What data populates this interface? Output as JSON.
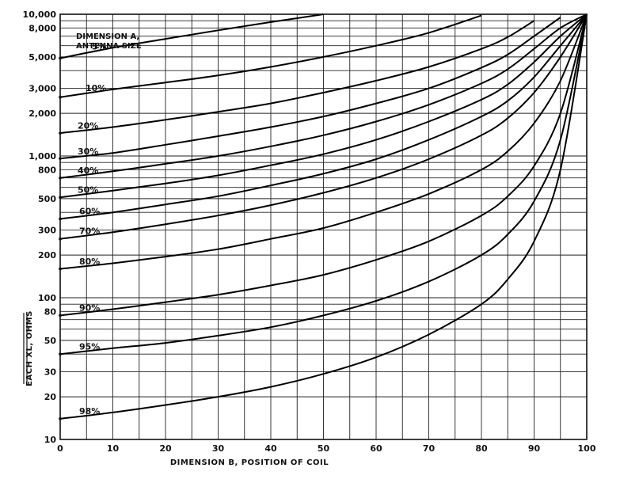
{
  "chart_data": {
    "type": "line",
    "title": "",
    "xlabel": "DIMENSION B, POSITION OF COIL",
    "ylabel": "EACH XL, OHMS",
    "legend_title": [
      "DIMENSION A,",
      "ANTENNA SIZE"
    ],
    "xlim": [
      0,
      100
    ],
    "ylim": [
      10,
      10000
    ],
    "yscale": "log",
    "grid": true,
    "x_ticks": [
      0,
      10,
      20,
      30,
      40,
      50,
      60,
      70,
      80,
      90,
      100
    ],
    "x_tick_labels": [
      "0",
      "10",
      "20",
      "30",
      "40",
      "50",
      "60",
      "70",
      "80",
      "90",
      "100"
    ],
    "y_ticks": [
      10,
      20,
      30,
      50,
      80,
      100,
      200,
      300,
      500,
      800,
      1000,
      2000,
      3000,
      5000,
      8000,
      10000
    ],
    "y_tick_labels": [
      "10",
      "20",
      "30",
      "50",
      "80",
      "100",
      "200",
      "300",
      "500",
      "800",
      "1,000",
      "2,000",
      "3,000",
      "5,000",
      "8,000",
      "10,000"
    ],
    "x": [
      0,
      10,
      20,
      30,
      40,
      50,
      60,
      70,
      80,
      85,
      90,
      95,
      100
    ],
    "series": [
      {
        "name": "5%",
        "values": [
          4900,
          5800,
          6700,
          7700,
          8800,
          10000,
          null,
          null,
          null,
          null,
          null,
          null,
          null
        ]
      },
      {
        "name": "10%",
        "values": [
          2600,
          2950,
          3300,
          3700,
          4250,
          5000,
          6000,
          7400,
          9800,
          null,
          null,
          null,
          null
        ]
      },
      {
        "name": "20%",
        "values": [
          1450,
          1600,
          1800,
          2050,
          2350,
          2800,
          3400,
          4250,
          5700,
          6900,
          9000,
          null,
          null
        ]
      },
      {
        "name": "30%",
        "values": [
          960,
          1050,
          1200,
          1380,
          1600,
          1900,
          2350,
          3000,
          4200,
          5200,
          7000,
          9500,
          null
        ]
      },
      {
        "name": "40%",
        "values": [
          700,
          780,
          880,
          1000,
          1170,
          1400,
          1750,
          2300,
          3250,
          4100,
          5700,
          8000,
          10000
        ]
      },
      {
        "name": "50%",
        "values": [
          510,
          570,
          640,
          730,
          860,
          1030,
          1300,
          1750,
          2500,
          3200,
          4600,
          7000,
          10000
        ]
      },
      {
        "name": "60%",
        "values": [
          360,
          400,
          455,
          520,
          620,
          750,
          950,
          1300,
          1900,
          2450,
          3600,
          6000,
          10000
        ]
      },
      {
        "name": "70%",
        "values": [
          260,
          290,
          330,
          380,
          450,
          550,
          700,
          950,
          1400,
          1850,
          2800,
          5000,
          10000
        ]
      },
      {
        "name": "80%",
        "values": [
          160,
          175,
          195,
          220,
          260,
          310,
          400,
          540,
          800,
          1080,
          1700,
          3400,
          10000
        ]
      },
      {
        "name": "90%",
        "values": [
          75,
          83,
          93,
          105,
          122,
          145,
          185,
          250,
          380,
          520,
          850,
          2000,
          10000
        ]
      },
      {
        "name": "95%",
        "values": [
          40,
          44,
          48,
          54,
          62,
          75,
          95,
          130,
          200,
          280,
          480,
          1300,
          10000
        ]
      },
      {
        "name": "98%",
        "values": [
          14,
          15.5,
          17.5,
          20,
          23.5,
          29,
          38,
          55,
          90,
          135,
          250,
          800,
          10000
        ]
      }
    ]
  }
}
